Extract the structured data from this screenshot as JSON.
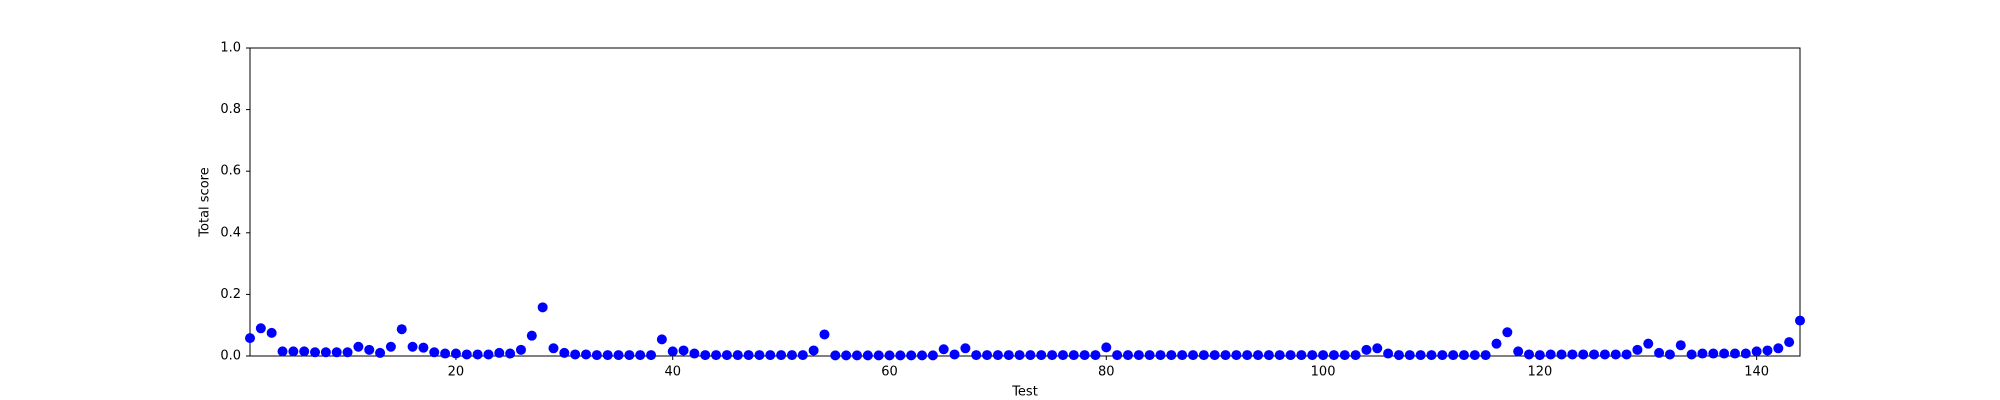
{
  "chart_data": {
    "type": "scatter",
    "xlabel": "Test",
    "ylabel": "Total score",
    "x": [
      1,
      2,
      3,
      4,
      5,
      6,
      7,
      8,
      9,
      10,
      11,
      12,
      13,
      14,
      15,
      16,
      17,
      18,
      19,
      20,
      21,
      22,
      23,
      24,
      25,
      26,
      27,
      28,
      29,
      30,
      31,
      32,
      33,
      34,
      35,
      36,
      37,
      38,
      39,
      40,
      41,
      42,
      43,
      44,
      45,
      46,
      47,
      48,
      49,
      50,
      51,
      52,
      53,
      54,
      55,
      56,
      57,
      58,
      59,
      60,
      61,
      62,
      63,
      64,
      65,
      66,
      67,
      68,
      69,
      70,
      71,
      72,
      73,
      74,
      75,
      76,
      77,
      78,
      79,
      80,
      81,
      82,
      83,
      84,
      85,
      86,
      87,
      88,
      89,
      90,
      91,
      92,
      93,
      94,
      95,
      96,
      97,
      98,
      99,
      100,
      101,
      102,
      103,
      104,
      105,
      106,
      107,
      108,
      109,
      110,
      111,
      112,
      113,
      114,
      115,
      116,
      117,
      118,
      119,
      120,
      121,
      122,
      123,
      124,
      125,
      126,
      127,
      128,
      129,
      130,
      131,
      132,
      133,
      134,
      135,
      136,
      137,
      138,
      139,
      140,
      141,
      142,
      143,
      144
    ],
    "values": [
      0.058,
      0.09,
      0.075,
      0.015,
      0.015,
      0.015,
      0.012,
      0.012,
      0.012,
      0.012,
      0.03,
      0.02,
      0.01,
      0.03,
      0.087,
      0.03,
      0.027,
      0.012,
      0.008,
      0.008,
      0.005,
      0.005,
      0.005,
      0.01,
      0.008,
      0.02,
      0.066,
      0.158,
      0.025,
      0.01,
      0.005,
      0.005,
      0.003,
      0.003,
      0.003,
      0.003,
      0.003,
      0.003,
      0.054,
      0.015,
      0.018,
      0.008,
      0.003,
      0.003,
      0.003,
      0.003,
      0.003,
      0.003,
      0.003,
      0.003,
      0.003,
      0.003,
      0.018,
      0.07,
      0.002,
      0.002,
      0.002,
      0.002,
      0.002,
      0.002,
      0.002,
      0.002,
      0.002,
      0.002,
      0.022,
      0.005,
      0.025,
      0.003,
      0.003,
      0.003,
      0.003,
      0.003,
      0.003,
      0.003,
      0.003,
      0.003,
      0.003,
      0.003,
      0.003,
      0.028,
      0.003,
      0.003,
      0.003,
      0.003,
      0.003,
      0.003,
      0.003,
      0.003,
      0.003,
      0.003,
      0.003,
      0.003,
      0.003,
      0.003,
      0.003,
      0.003,
      0.003,
      0.003,
      0.003,
      0.003,
      0.003,
      0.003,
      0.003,
      0.02,
      0.025,
      0.008,
      0.003,
      0.003,
      0.003,
      0.003,
      0.003,
      0.003,
      0.003,
      0.003,
      0.003,
      0.04,
      0.077,
      0.015,
      0.005,
      0.003,
      0.005,
      0.005,
      0.005,
      0.005,
      0.005,
      0.005,
      0.005,
      0.005,
      0.02,
      0.04,
      0.01,
      0.005,
      0.035,
      0.005,
      0.008,
      0.008,
      0.008,
      0.008,
      0.008,
      0.015,
      0.018,
      0.025,
      0.045,
      0.115
    ],
    "color": "#0000ff",
    "xlim": [
      1,
      144
    ],
    "xticks": [
      20,
      40,
      60,
      80,
      100,
      120,
      140
    ],
    "ylim": [
      0,
      1
    ],
    "yticks": [
      {
        "value": 0,
        "label": "0.0"
      },
      {
        "value": 0.2,
        "label": "0.2"
      },
      {
        "value": 0.4,
        "label": "0.4"
      },
      {
        "value": 0.6,
        "label": "0.6"
      },
      {
        "value": 0.8,
        "label": "0.8"
      },
      {
        "value": 1,
        "label": "1.0"
      }
    ],
    "grid": false
  }
}
